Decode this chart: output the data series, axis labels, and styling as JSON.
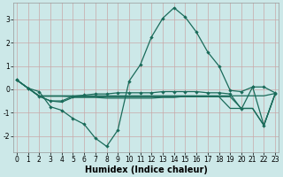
{
  "xlabel": "Humidex (Indice chaleur)",
  "bg_color": "#cce8e8",
  "line_color": "#1a6b5a",
  "grid_color": "#c8a8a8",
  "x": [
    0,
    1,
    2,
    3,
    4,
    5,
    6,
    7,
    8,
    9,
    10,
    11,
    12,
    13,
    14,
    15,
    16,
    17,
    18,
    19,
    20,
    21,
    22,
    23
  ],
  "line_main": [
    0.4,
    0.05,
    -0.1,
    -0.75,
    -0.9,
    -1.25,
    -1.5,
    -2.1,
    -2.45,
    -1.75,
    0.35,
    1.05,
    2.25,
    3.05,
    3.5,
    3.1,
    2.45,
    1.6,
    1.0,
    -0.05,
    -0.1,
    0.1,
    0.1,
    -0.15
  ],
  "line2": [
    0.4,
    0.05,
    -0.3,
    -0.5,
    -0.5,
    -0.3,
    -0.25,
    -0.2,
    -0.2,
    -0.15,
    -0.15,
    -0.15,
    -0.15,
    -0.1,
    -0.1,
    -0.1,
    -0.1,
    -0.15,
    -0.15,
    -0.2,
    -0.85,
    0.1,
    -1.55,
    -0.2
  ],
  "line3": [
    0.4,
    0.05,
    -0.3,
    -0.5,
    -0.55,
    -0.35,
    -0.35,
    -0.35,
    -0.38,
    -0.38,
    -0.38,
    -0.38,
    -0.38,
    -0.35,
    -0.35,
    -0.3,
    -0.3,
    -0.3,
    -0.32,
    -0.82,
    -0.82,
    -0.82,
    -1.55,
    -0.2
  ],
  "line4": [
    0.4,
    0.05,
    -0.3,
    -0.3,
    -0.3,
    -0.32,
    -0.32,
    -0.32,
    -0.32,
    -0.32,
    -0.32,
    -0.32,
    -0.32,
    -0.32,
    -0.32,
    -0.32,
    -0.32,
    -0.32,
    -0.32,
    -0.32,
    -0.82,
    -0.82,
    -1.55,
    -0.2
  ],
  "line5": [
    0.4,
    0.05,
    -0.28,
    -0.28,
    -0.28,
    -0.28,
    -0.28,
    -0.28,
    -0.28,
    -0.28,
    -0.28,
    -0.28,
    -0.28,
    -0.28,
    -0.28,
    -0.28,
    -0.28,
    -0.28,
    -0.28,
    -0.28,
    -0.28,
    -0.28,
    -0.28,
    -0.18
  ],
  "ylim": [
    -2.7,
    3.7
  ],
  "xlim": [
    -0.3,
    23.3
  ],
  "yticks": [
    -2,
    -1,
    0,
    1,
    2,
    3
  ],
  "xticks": [
    0,
    1,
    2,
    3,
    4,
    5,
    6,
    7,
    8,
    9,
    10,
    11,
    12,
    13,
    14,
    15,
    16,
    17,
    18,
    19,
    20,
    21,
    22,
    23
  ],
  "xlabel_fontsize": 7,
  "tick_fontsize": 5.5,
  "linewidth": 0.9,
  "marker_size": 2.2
}
